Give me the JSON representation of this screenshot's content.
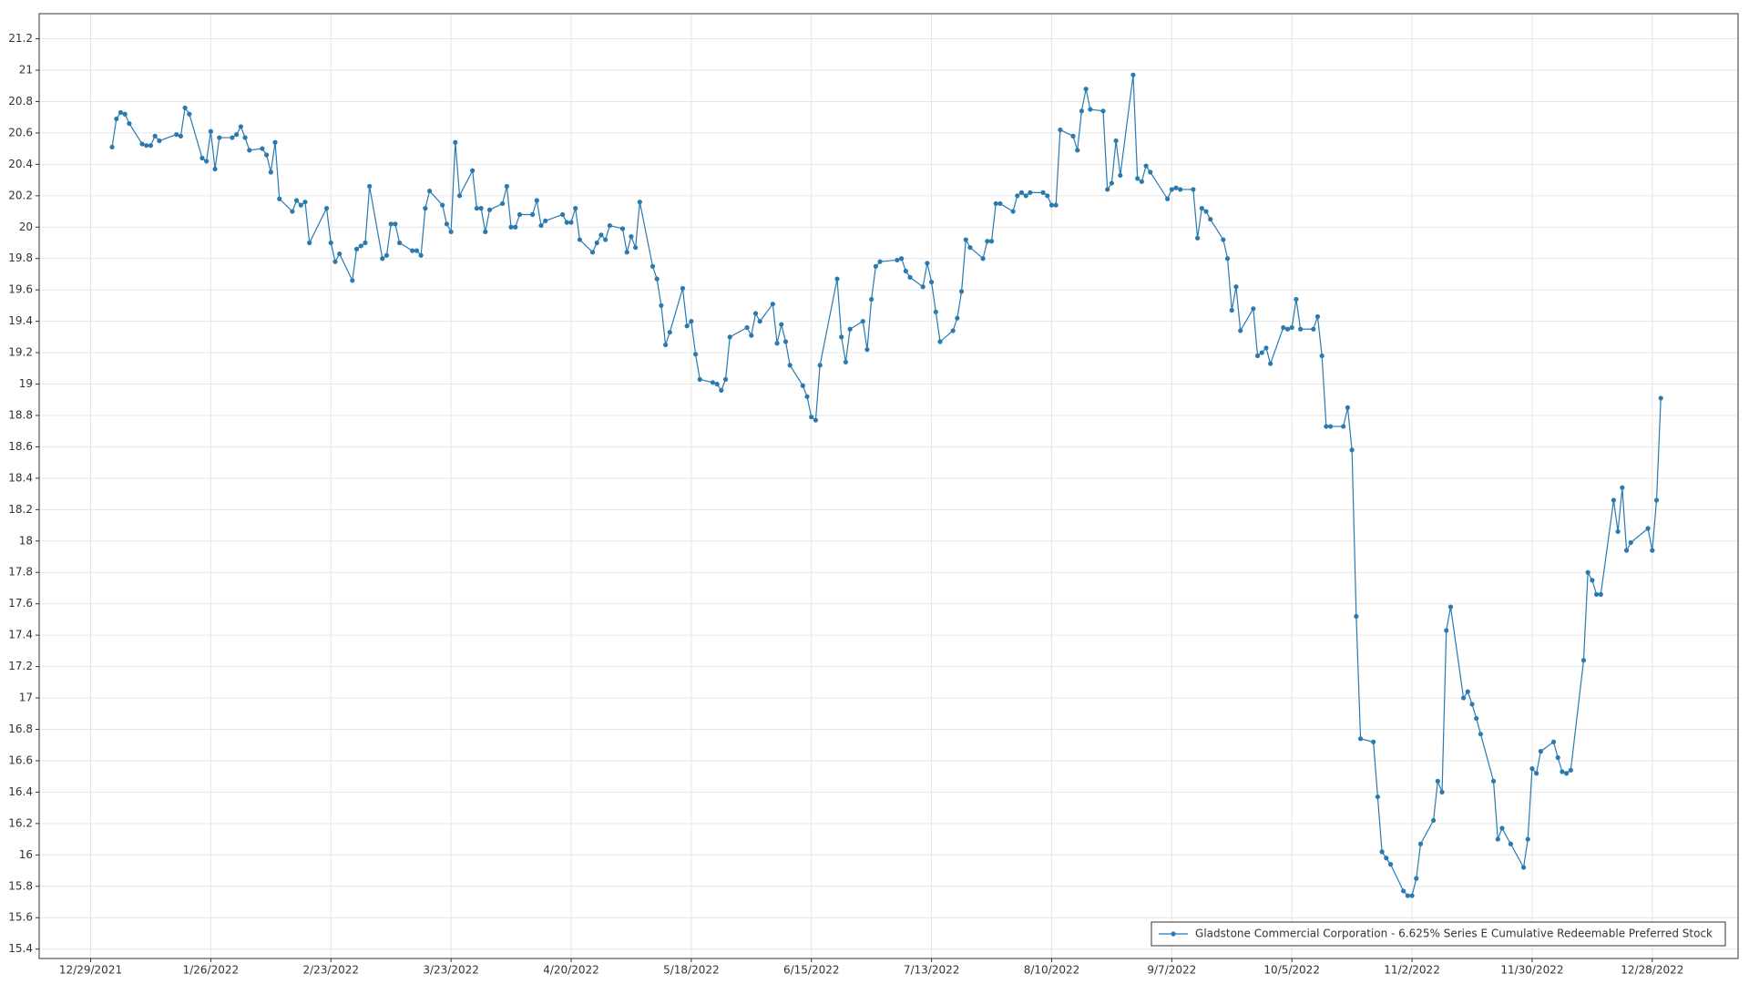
{
  "chart_data": {
    "type": "line",
    "x": [
      "2022-01-03",
      "2022-01-04",
      "2022-01-05",
      "2022-01-06",
      "2022-01-07",
      "2022-01-10",
      "2022-01-11",
      "2022-01-12",
      "2022-01-13",
      "2022-01-14",
      "2022-01-18",
      "2022-01-19",
      "2022-01-20",
      "2022-01-21",
      "2022-01-24",
      "2022-01-25",
      "2022-01-26",
      "2022-01-27",
      "2022-01-28",
      "2022-01-31",
      "2022-02-01",
      "2022-02-02",
      "2022-02-03",
      "2022-02-04",
      "2022-02-07",
      "2022-02-08",
      "2022-02-09",
      "2022-02-10",
      "2022-02-11",
      "2022-02-14",
      "2022-02-15",
      "2022-02-16",
      "2022-02-17",
      "2022-02-18",
      "2022-02-22",
      "2022-02-23",
      "2022-02-24",
      "2022-02-25",
      "2022-02-28",
      "2022-03-01",
      "2022-03-02",
      "2022-03-03",
      "2022-03-04",
      "2022-03-07",
      "2022-03-08",
      "2022-03-09",
      "2022-03-10",
      "2022-03-11",
      "2022-03-14",
      "2022-03-15",
      "2022-03-16",
      "2022-03-17",
      "2022-03-18",
      "2022-03-21",
      "2022-03-22",
      "2022-03-23",
      "2022-03-24",
      "2022-03-25",
      "2022-03-28",
      "2022-03-29",
      "2022-03-30",
      "2022-03-31",
      "2022-04-01",
      "2022-04-04",
      "2022-04-05",
      "2022-04-06",
      "2022-04-07",
      "2022-04-08",
      "2022-04-11",
      "2022-04-12",
      "2022-04-13",
      "2022-04-14",
      "2022-04-18",
      "2022-04-19",
      "2022-04-20",
      "2022-04-21",
      "2022-04-22",
      "2022-04-25",
      "2022-04-26",
      "2022-04-27",
      "2022-04-28",
      "2022-04-29",
      "2022-05-02",
      "2022-05-03",
      "2022-05-04",
      "2022-05-05",
      "2022-05-06",
      "2022-05-09",
      "2022-05-10",
      "2022-05-11",
      "2022-05-12",
      "2022-05-13",
      "2022-05-16",
      "2022-05-17",
      "2022-05-18",
      "2022-05-19",
      "2022-05-20",
      "2022-05-23",
      "2022-05-24",
      "2022-05-25",
      "2022-05-26",
      "2022-05-27",
      "2022-05-31",
      "2022-06-01",
      "2022-06-02",
      "2022-06-03",
      "2022-06-06",
      "2022-06-07",
      "2022-06-08",
      "2022-06-09",
      "2022-06-10",
      "2022-06-13",
      "2022-06-14",
      "2022-06-15",
      "2022-06-16",
      "2022-06-17",
      "2022-06-21",
      "2022-06-22",
      "2022-06-23",
      "2022-06-24",
      "2022-06-27",
      "2022-06-28",
      "2022-06-29",
      "2022-06-30",
      "2022-07-01",
      "2022-07-05",
      "2022-07-06",
      "2022-07-07",
      "2022-07-08",
      "2022-07-11",
      "2022-07-12",
      "2022-07-13",
      "2022-07-14",
      "2022-07-15",
      "2022-07-18",
      "2022-07-19",
      "2022-07-20",
      "2022-07-21",
      "2022-07-22",
      "2022-07-25",
      "2022-07-26",
      "2022-07-27",
      "2022-07-28",
      "2022-07-29",
      "2022-08-01",
      "2022-08-02",
      "2022-08-03",
      "2022-08-04",
      "2022-08-05",
      "2022-08-08",
      "2022-08-09",
      "2022-08-10",
      "2022-08-11",
      "2022-08-12",
      "2022-08-15",
      "2022-08-16",
      "2022-08-17",
      "2022-08-18",
      "2022-08-19",
      "2022-08-22",
      "2022-08-23",
      "2022-08-24",
      "2022-08-25",
      "2022-08-26",
      "2022-08-29",
      "2022-08-30",
      "2022-08-31",
      "2022-09-01",
      "2022-09-02",
      "2022-09-06",
      "2022-09-07",
      "2022-09-08",
      "2022-09-09",
      "2022-09-12",
      "2022-09-13",
      "2022-09-14",
      "2022-09-15",
      "2022-09-16",
      "2022-09-19",
      "2022-09-20",
      "2022-09-21",
      "2022-09-22",
      "2022-09-23",
      "2022-09-26",
      "2022-09-27",
      "2022-09-28",
      "2022-09-29",
      "2022-09-30",
      "2022-10-03",
      "2022-10-04",
      "2022-10-05",
      "2022-10-06",
      "2022-10-07",
      "2022-10-10",
      "2022-10-11",
      "2022-10-12",
      "2022-10-13",
      "2022-10-14",
      "2022-10-17",
      "2022-10-18",
      "2022-10-19",
      "2022-10-20",
      "2022-10-21",
      "2022-10-24",
      "2022-10-25",
      "2022-10-26",
      "2022-10-27",
      "2022-10-28",
      "2022-10-31",
      "2022-11-01",
      "2022-11-02",
      "2022-11-03",
      "2022-11-04",
      "2022-11-07",
      "2022-11-08",
      "2022-11-09",
      "2022-11-10",
      "2022-11-11",
      "2022-11-14",
      "2022-11-15",
      "2022-11-16",
      "2022-11-17",
      "2022-11-18",
      "2022-11-21",
      "2022-11-22",
      "2022-11-23",
      "2022-11-25",
      "2022-11-28",
      "2022-11-29",
      "2022-11-30",
      "2022-12-01",
      "2022-12-02",
      "2022-12-05",
      "2022-12-06",
      "2022-12-07",
      "2022-12-08",
      "2022-12-09",
      "2022-12-12",
      "2022-12-13",
      "2022-12-14",
      "2022-12-15",
      "2022-12-16",
      "2022-12-19",
      "2022-12-20",
      "2022-12-21",
      "2022-12-22",
      "2022-12-23",
      "2022-12-27",
      "2022-12-28",
      "2022-12-29",
      "2022-12-30"
    ],
    "series": [
      {
        "name": "Gladstone Commercial Corporation - 6.625% Series E Cumulative Redeemable Preferred Stock",
        "color": "#2a7ab0",
        "values": [
          20.51,
          20.69,
          20.73,
          20.72,
          20.66,
          20.53,
          20.52,
          20.52,
          20.58,
          20.55,
          20.59,
          20.58,
          20.76,
          20.72,
          20.44,
          20.42,
          20.61,
          20.37,
          20.57,
          20.57,
          20.59,
          20.64,
          20.57,
          20.49,
          20.5,
          20.46,
          20.35,
          20.54,
          20.18,
          20.1,
          20.17,
          20.14,
          20.16,
          19.9,
          20.12,
          19.9,
          19.78,
          19.83,
          19.66,
          19.86,
          19.88,
          19.9,
          20.26,
          19.8,
          19.82,
          20.02,
          20.02,
          19.9,
          19.85,
          19.85,
          19.82,
          20.12,
          20.23,
          20.14,
          20.02,
          19.97,
          20.54,
          20.2,
          20.36,
          20.12,
          20.12,
          19.97,
          20.11,
          20.15,
          20.26,
          20.0,
          20.0,
          20.08,
          20.08,
          20.17,
          20.01,
          20.04,
          20.08,
          20.03,
          20.03,
          20.12,
          19.92,
          19.84,
          19.9,
          19.95,
          19.92,
          20.01,
          19.99,
          19.84,
          19.94,
          19.87,
          20.16,
          19.75,
          19.67,
          19.5,
          19.25,
          19.33,
          19.61,
          19.37,
          19.4,
          19.19,
          19.03,
          19.01,
          19.0,
          18.96,
          19.03,
          19.3,
          19.36,
          19.31,
          19.45,
          19.4,
          19.51,
          19.26,
          19.38,
          19.27,
          19.12,
          18.99,
          18.92,
          18.79,
          18.77,
          19.12,
          19.67,
          19.3,
          19.14,
          19.35,
          19.4,
          19.22,
          19.54,
          19.75,
          19.78,
          19.79,
          19.8,
          19.72,
          19.68,
          19.62,
          19.77,
          19.65,
          19.46,
          19.27,
          19.34,
          19.42,
          19.59,
          19.92,
          19.87,
          19.8,
          19.91,
          19.91,
          20.15,
          20.15,
          20.1,
          20.2,
          20.22,
          20.2,
          20.22,
          20.22,
          20.2,
          20.14,
          20.14,
          20.62,
          20.58,
          20.49,
          20.74,
          20.88,
          20.75,
          20.74,
          20.24,
          20.28,
          20.55,
          20.33,
          20.97,
          20.31,
          20.29,
          20.39,
          20.35,
          20.18,
          20.24,
          20.25,
          20.24,
          20.24,
          19.93,
          20.12,
          20.1,
          20.05,
          19.92,
          19.8,
          19.47,
          19.62,
          19.34,
          19.48,
          19.18,
          19.2,
          19.23,
          19.13,
          19.36,
          19.35,
          19.36,
          19.54,
          19.35,
          19.35,
          19.43,
          19.18,
          18.73,
          18.73,
          18.73,
          18.85,
          18.58,
          17.52,
          16.74,
          16.72,
          16.37,
          16.02,
          15.98,
          15.94,
          15.77,
          15.74,
          15.74,
          15.85,
          16.07,
          16.22,
          16.47,
          16.4,
          17.43,
          17.58,
          17.0,
          17.04,
          16.96,
          16.87,
          16.77,
          16.47,
          16.1,
          16.17,
          16.07,
          15.92,
          16.1,
          16.55,
          16.52,
          16.66,
          16.72,
          16.62,
          16.53,
          16.52,
          16.54,
          17.24,
          17.8,
          17.75,
          17.66,
          17.66,
          18.26,
          18.06,
          18.34,
          17.94,
          17.99,
          18.08,
          17.94,
          18.26,
          18.91
        ]
      }
    ],
    "xlim": [
      "2021-12-17",
      "2023-01-17"
    ],
    "xticks": [
      {
        "value": "2021-12-29",
        "label": "12/29/2021"
      },
      {
        "value": "2022-01-26",
        "label": "1/26/2022"
      },
      {
        "value": "2022-02-23",
        "label": "2/23/2022"
      },
      {
        "value": "2022-03-23",
        "label": "3/23/2022"
      },
      {
        "value": "2022-04-20",
        "label": "4/20/2022"
      },
      {
        "value": "2022-05-18",
        "label": "5/18/2022"
      },
      {
        "value": "2022-06-15",
        "label": "6/15/2022"
      },
      {
        "value": "2022-07-13",
        "label": "7/13/2022"
      },
      {
        "value": "2022-08-10",
        "label": "8/10/2022"
      },
      {
        "value": "2022-09-07",
        "label": "9/7/2022"
      },
      {
        "value": "2022-10-05",
        "label": "10/5/2022"
      },
      {
        "value": "2022-11-02",
        "label": "11/2/2022"
      },
      {
        "value": "2022-11-30",
        "label": "11/30/2022"
      },
      {
        "value": "2022-12-28",
        "label": "12/28/2022"
      }
    ],
    "ylim": [
      15.34,
      21.36
    ],
    "yticks": [
      15.4,
      15.6,
      15.8,
      16,
      16.2,
      16.4,
      16.6,
      16.8,
      17,
      17.2,
      17.4,
      17.6,
      17.8,
      18,
      18.2,
      18.4,
      18.6,
      18.8,
      19,
      19.2,
      19.4,
      19.6,
      19.8,
      20,
      20.2,
      20.4,
      20.6,
      20.8,
      21,
      21.2
    ],
    "grid": true,
    "legend": "lower right"
  }
}
